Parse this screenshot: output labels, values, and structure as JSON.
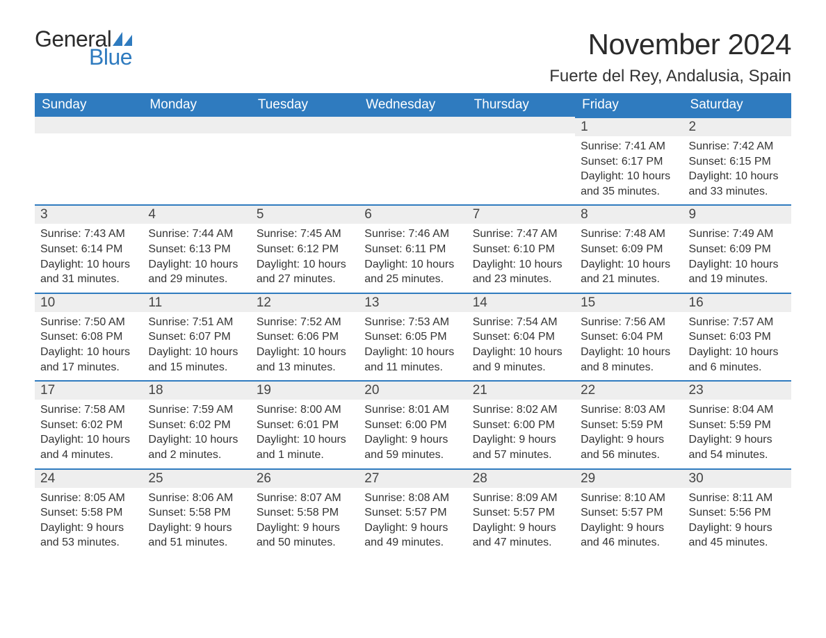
{
  "brand": {
    "general": "General",
    "blue": "Blue",
    "sail_color": "#2f7bbf"
  },
  "title": "November 2024",
  "location": "Fuerte del Rey, Andalusia, Spain",
  "columns": [
    "Sunday",
    "Monday",
    "Tuesday",
    "Wednesday",
    "Thursday",
    "Friday",
    "Saturday"
  ],
  "style": {
    "header_bg": "#2f7bbf",
    "header_fg": "#ffffff",
    "daynum_bg": "#eeeeee",
    "daynum_border": "#2f7bbf",
    "page_bg": "#ffffff",
    "text_color": "#333333"
  },
  "weeks": [
    [
      null,
      null,
      null,
      null,
      null,
      {
        "n": "1",
        "sunrise": "Sunrise: 7:41 AM",
        "sunset": "Sunset: 6:17 PM",
        "daylight": "Daylight: 10 hours and 35 minutes."
      },
      {
        "n": "2",
        "sunrise": "Sunrise: 7:42 AM",
        "sunset": "Sunset: 6:15 PM",
        "daylight": "Daylight: 10 hours and 33 minutes."
      }
    ],
    [
      {
        "n": "3",
        "sunrise": "Sunrise: 7:43 AM",
        "sunset": "Sunset: 6:14 PM",
        "daylight": "Daylight: 10 hours and 31 minutes."
      },
      {
        "n": "4",
        "sunrise": "Sunrise: 7:44 AM",
        "sunset": "Sunset: 6:13 PM",
        "daylight": "Daylight: 10 hours and 29 minutes."
      },
      {
        "n": "5",
        "sunrise": "Sunrise: 7:45 AM",
        "sunset": "Sunset: 6:12 PM",
        "daylight": "Daylight: 10 hours and 27 minutes."
      },
      {
        "n": "6",
        "sunrise": "Sunrise: 7:46 AM",
        "sunset": "Sunset: 6:11 PM",
        "daylight": "Daylight: 10 hours and 25 minutes."
      },
      {
        "n": "7",
        "sunrise": "Sunrise: 7:47 AM",
        "sunset": "Sunset: 6:10 PM",
        "daylight": "Daylight: 10 hours and 23 minutes."
      },
      {
        "n": "8",
        "sunrise": "Sunrise: 7:48 AM",
        "sunset": "Sunset: 6:09 PM",
        "daylight": "Daylight: 10 hours and 21 minutes."
      },
      {
        "n": "9",
        "sunrise": "Sunrise: 7:49 AM",
        "sunset": "Sunset: 6:09 PM",
        "daylight": "Daylight: 10 hours and 19 minutes."
      }
    ],
    [
      {
        "n": "10",
        "sunrise": "Sunrise: 7:50 AM",
        "sunset": "Sunset: 6:08 PM",
        "daylight": "Daylight: 10 hours and 17 minutes."
      },
      {
        "n": "11",
        "sunrise": "Sunrise: 7:51 AM",
        "sunset": "Sunset: 6:07 PM",
        "daylight": "Daylight: 10 hours and 15 minutes."
      },
      {
        "n": "12",
        "sunrise": "Sunrise: 7:52 AM",
        "sunset": "Sunset: 6:06 PM",
        "daylight": "Daylight: 10 hours and 13 minutes."
      },
      {
        "n": "13",
        "sunrise": "Sunrise: 7:53 AM",
        "sunset": "Sunset: 6:05 PM",
        "daylight": "Daylight: 10 hours and 11 minutes."
      },
      {
        "n": "14",
        "sunrise": "Sunrise: 7:54 AM",
        "sunset": "Sunset: 6:04 PM",
        "daylight": "Daylight: 10 hours and 9 minutes."
      },
      {
        "n": "15",
        "sunrise": "Sunrise: 7:56 AM",
        "sunset": "Sunset: 6:04 PM",
        "daylight": "Daylight: 10 hours and 8 minutes."
      },
      {
        "n": "16",
        "sunrise": "Sunrise: 7:57 AM",
        "sunset": "Sunset: 6:03 PM",
        "daylight": "Daylight: 10 hours and 6 minutes."
      }
    ],
    [
      {
        "n": "17",
        "sunrise": "Sunrise: 7:58 AM",
        "sunset": "Sunset: 6:02 PM",
        "daylight": "Daylight: 10 hours and 4 minutes."
      },
      {
        "n": "18",
        "sunrise": "Sunrise: 7:59 AM",
        "sunset": "Sunset: 6:02 PM",
        "daylight": "Daylight: 10 hours and 2 minutes."
      },
      {
        "n": "19",
        "sunrise": "Sunrise: 8:00 AM",
        "sunset": "Sunset: 6:01 PM",
        "daylight": "Daylight: 10 hours and 1 minute."
      },
      {
        "n": "20",
        "sunrise": "Sunrise: 8:01 AM",
        "sunset": "Sunset: 6:00 PM",
        "daylight": "Daylight: 9 hours and 59 minutes."
      },
      {
        "n": "21",
        "sunrise": "Sunrise: 8:02 AM",
        "sunset": "Sunset: 6:00 PM",
        "daylight": "Daylight: 9 hours and 57 minutes."
      },
      {
        "n": "22",
        "sunrise": "Sunrise: 8:03 AM",
        "sunset": "Sunset: 5:59 PM",
        "daylight": "Daylight: 9 hours and 56 minutes."
      },
      {
        "n": "23",
        "sunrise": "Sunrise: 8:04 AM",
        "sunset": "Sunset: 5:59 PM",
        "daylight": "Daylight: 9 hours and 54 minutes."
      }
    ],
    [
      {
        "n": "24",
        "sunrise": "Sunrise: 8:05 AM",
        "sunset": "Sunset: 5:58 PM",
        "daylight": "Daylight: 9 hours and 53 minutes."
      },
      {
        "n": "25",
        "sunrise": "Sunrise: 8:06 AM",
        "sunset": "Sunset: 5:58 PM",
        "daylight": "Daylight: 9 hours and 51 minutes."
      },
      {
        "n": "26",
        "sunrise": "Sunrise: 8:07 AM",
        "sunset": "Sunset: 5:58 PM",
        "daylight": "Daylight: 9 hours and 50 minutes."
      },
      {
        "n": "27",
        "sunrise": "Sunrise: 8:08 AM",
        "sunset": "Sunset: 5:57 PM",
        "daylight": "Daylight: 9 hours and 49 minutes."
      },
      {
        "n": "28",
        "sunrise": "Sunrise: 8:09 AM",
        "sunset": "Sunset: 5:57 PM",
        "daylight": "Daylight: 9 hours and 47 minutes."
      },
      {
        "n": "29",
        "sunrise": "Sunrise: 8:10 AM",
        "sunset": "Sunset: 5:57 PM",
        "daylight": "Daylight: 9 hours and 46 minutes."
      },
      {
        "n": "30",
        "sunrise": "Sunrise: 8:11 AM",
        "sunset": "Sunset: 5:56 PM",
        "daylight": "Daylight: 9 hours and 45 minutes."
      }
    ]
  ]
}
